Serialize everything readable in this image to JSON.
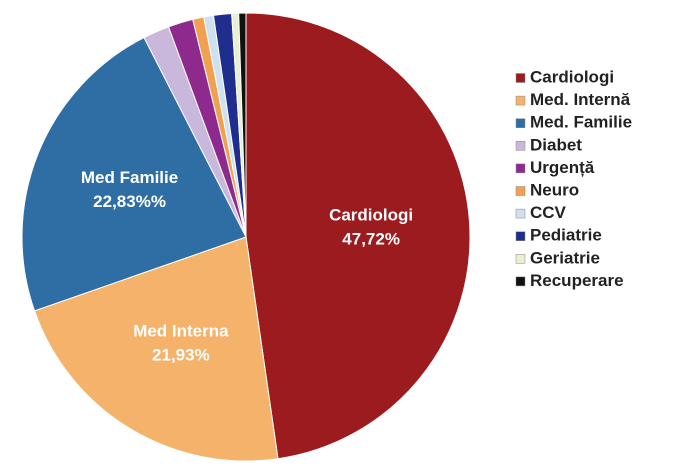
{
  "chart_data": {
    "type": "pie",
    "categories": [
      "Cardiologi",
      "Med. Internă",
      "Med. Familie",
      "Diabet",
      "Urgență",
      "Neuro",
      "CCV",
      "Pediatrie",
      "Geriatrie",
      "Recuperare"
    ],
    "values": [
      47.72,
      21.93,
      22.83,
      1.9,
      1.8,
      0.8,
      0.7,
      1.3,
      0.5,
      0.52
    ],
    "slice_labels": [
      "Cardiologi",
      "Med Interna",
      "Med Familie",
      null,
      null,
      null,
      null,
      null,
      null,
      null
    ],
    "value_labels": [
      "47,72%",
      "21,93%",
      "22,83%%",
      null,
      null,
      null,
      null,
      null,
      null,
      null
    ],
    "colors": [
      "#9b1b1f",
      "#f5b26b",
      "#2f6ea5",
      "#c9b8dc",
      "#8e2a8e",
      "#f0a050",
      "#cfe0f1",
      "#1f2d8c",
      "#e8f0d2",
      "#111111"
    ],
    "legend": "right"
  }
}
